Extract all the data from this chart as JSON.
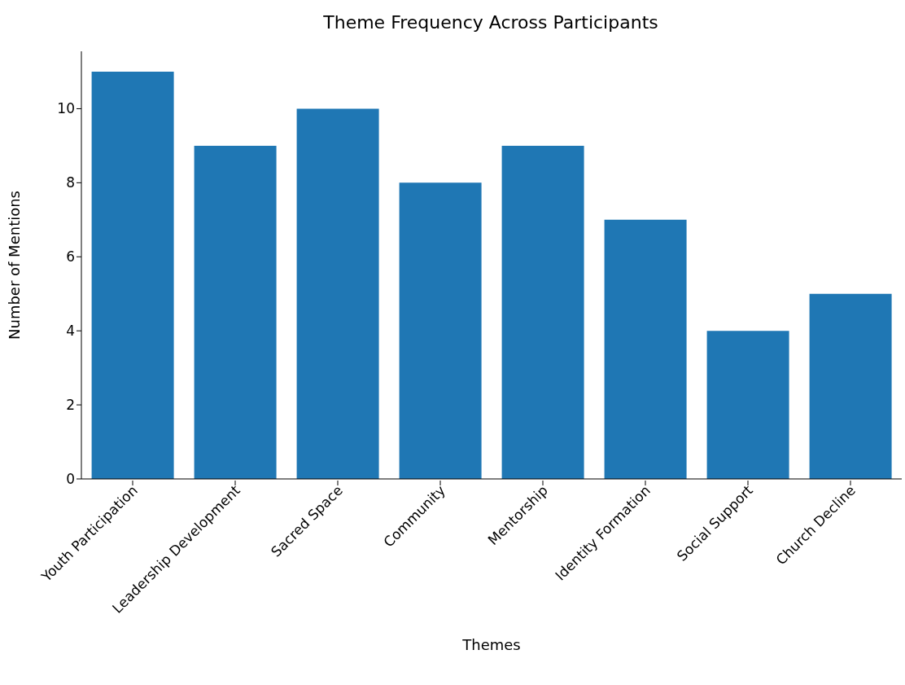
{
  "chart_data": {
    "type": "bar",
    "title": "Theme Frequency Across Participants",
    "xlabel": "Themes",
    "ylabel": "Number of Mentions",
    "categories": [
      "Youth Participation",
      "Leadership Development",
      "Sacred Space",
      "Community",
      "Mentorship",
      "Identity Formation",
      "Social Support",
      "Church Decline"
    ],
    "values": [
      11,
      9,
      10,
      8,
      9,
      7,
      4,
      5
    ],
    "color": "#1f77b4",
    "ylim": [
      0,
      11.55
    ],
    "yticks": [
      0,
      2,
      4,
      6,
      8,
      10
    ],
    "grid": false,
    "legend": false
  }
}
